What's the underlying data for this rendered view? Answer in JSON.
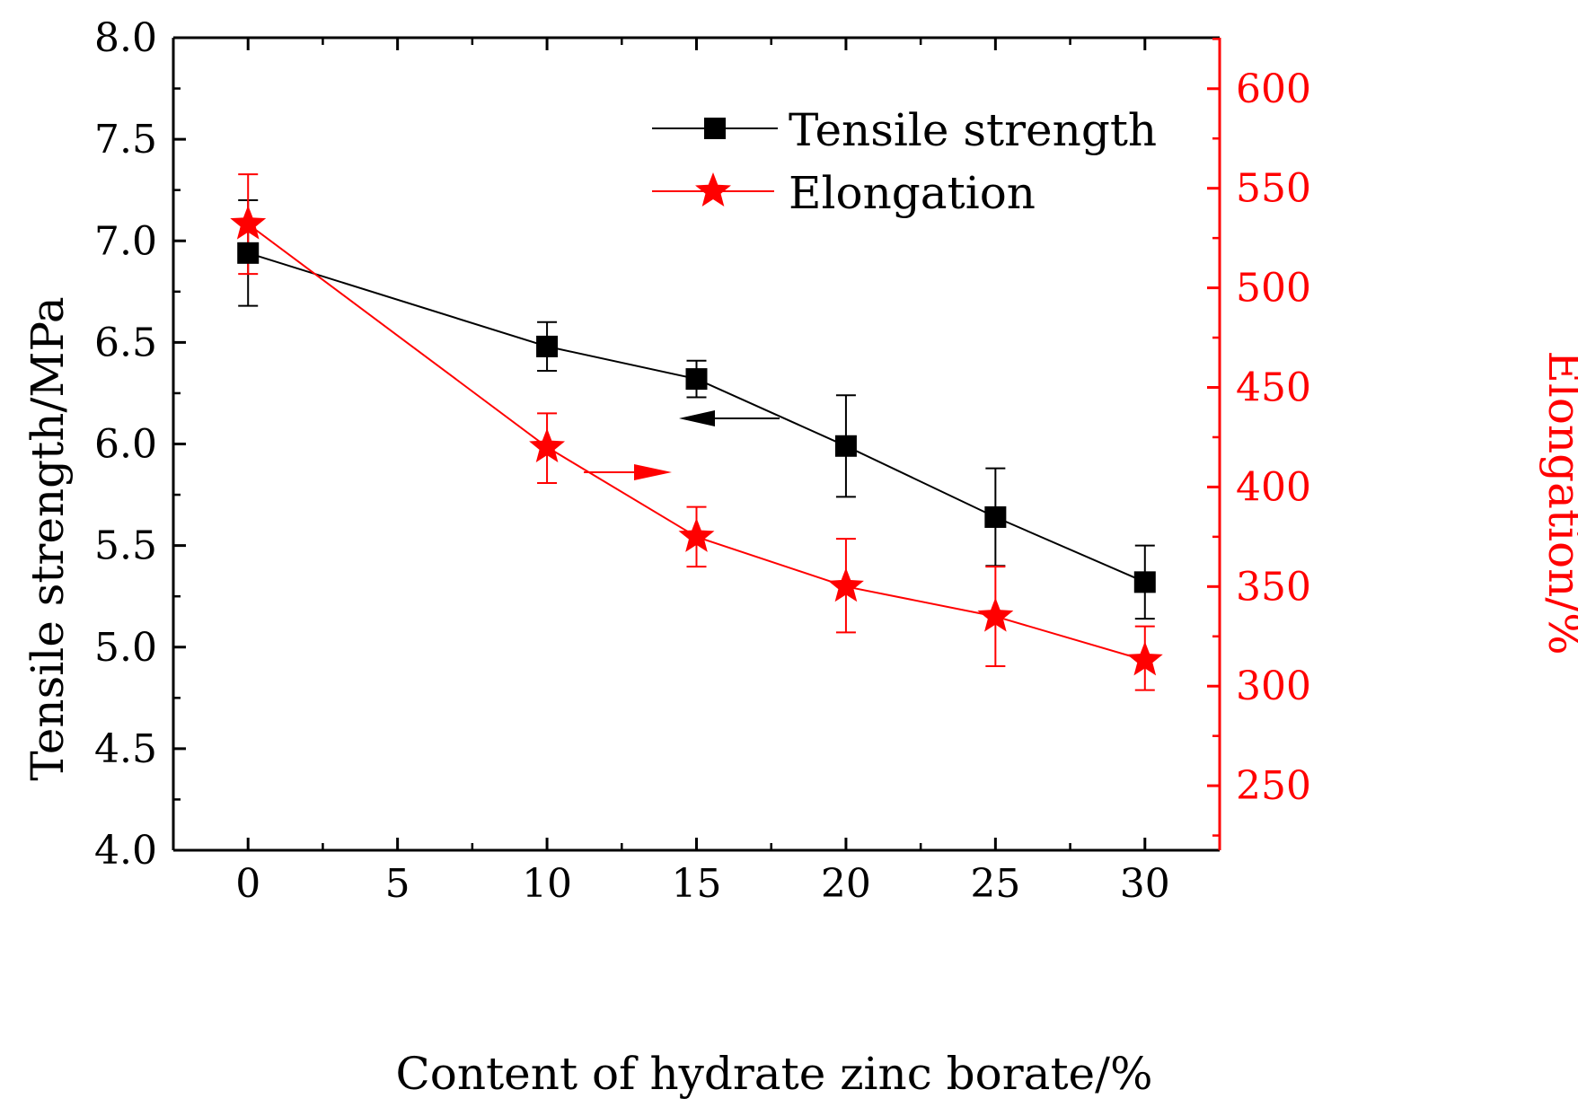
{
  "chart_data": {
    "type": "line",
    "xlabel": "Content of hydrate zinc borate/%",
    "ylabel_left": "Tensile strength/MPa",
    "ylabel_right": "Elongation/%",
    "xlim": [
      -2.5,
      32.5
    ],
    "ylim_left": [
      4.0,
      8.0
    ],
    "ylim_right": [
      217.6,
      625.6
    ],
    "x_ticks": [
      0,
      5,
      10,
      15,
      20,
      25,
      30
    ],
    "x_tick_labels": [
      "0",
      "5",
      "10",
      "15",
      "20",
      "25",
      "30"
    ],
    "y_left_ticks": [
      4.0,
      4.5,
      5.0,
      5.5,
      6.0,
      6.5,
      7.0,
      7.5,
      8.0
    ],
    "y_left_tick_labels": [
      "4.0",
      "4.5",
      "5.0",
      "5.5",
      "6.0",
      "6.5",
      "7.0",
      "7.5",
      "8.0"
    ],
    "y_right_ticks": [
      250,
      300,
      350,
      400,
      450,
      500,
      550,
      600
    ],
    "y_right_tick_labels": [
      "250",
      "300",
      "350",
      "400",
      "450",
      "500",
      "550",
      "600"
    ],
    "colors": {
      "tensile": "#000000",
      "elongation": "#ff0000"
    },
    "series": [
      {
        "name": "Tensile strength",
        "axis": "left",
        "marker": "square",
        "x": [
          0,
          10,
          15,
          20,
          25,
          30
        ],
        "values": [
          6.94,
          6.48,
          6.32,
          5.99,
          5.64,
          5.32
        ],
        "err_high": [
          7.2,
          6.6,
          6.41,
          6.24,
          5.88,
          5.5
        ],
        "err_low": [
          6.68,
          6.36,
          6.23,
          5.74,
          5.4,
          5.14
        ]
      },
      {
        "name": "Elongation",
        "axis": "right",
        "marker": "star",
        "x": [
          0,
          10,
          15,
          20,
          25,
          30
        ],
        "values": [
          532,
          420,
          375,
          350,
          335,
          313
        ],
        "err_high": [
          557,
          437,
          390,
          374,
          360,
          330
        ],
        "err_low": [
          507,
          402,
          360,
          327,
          310,
          298
        ]
      }
    ],
    "annotations": [
      {
        "type": "arrow",
        "points_to": "left",
        "color": "#000000",
        "label": ""
      },
      {
        "type": "arrow",
        "points_to": "right",
        "color": "#ff0000",
        "label": ""
      }
    ],
    "legend": {
      "position": "top-right",
      "entries": [
        "Tensile strength",
        "Elongation"
      ]
    }
  }
}
